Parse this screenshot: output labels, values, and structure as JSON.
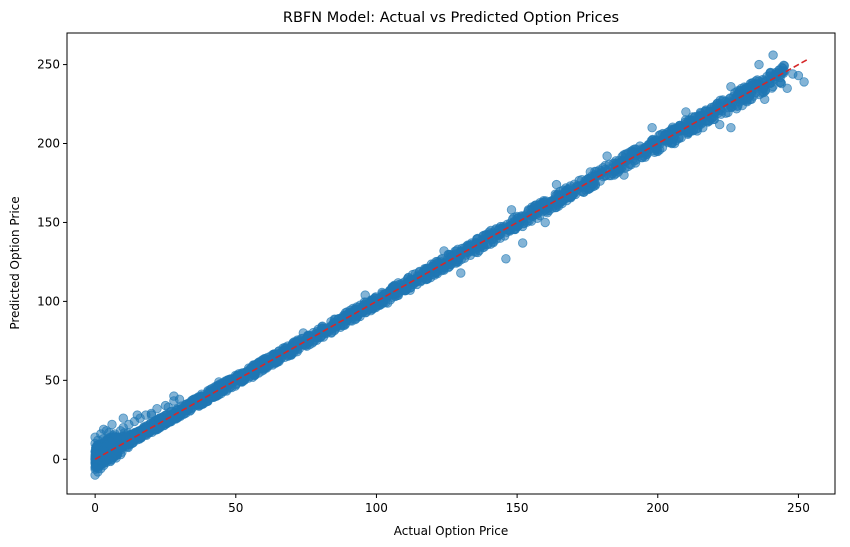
{
  "chart_data": {
    "type": "scatter",
    "title": "RBFN Model: Actual vs Predicted Option Prices",
    "xlabel": "Actual Option Price",
    "ylabel": "Predicted Option Price",
    "xlim": [
      -10,
      263
    ],
    "ylim": [
      -22,
      270
    ],
    "x_ticks": [
      0,
      50,
      100,
      150,
      200,
      250
    ],
    "y_ticks": [
      0,
      50,
      100,
      150,
      200,
      250
    ],
    "grid": false,
    "colors": {
      "points": "#1f77b4",
      "reference_line": "#d62728"
    },
    "reference_line": {
      "style": "dashed",
      "x": [
        0,
        253
      ],
      "y": [
        0,
        253
      ]
    },
    "series": [
      {
        "description_points": [
          [
            0,
            -10
          ],
          [
            0,
            -5
          ],
          [
            0,
            0
          ],
          [
            0,
            5
          ],
          [
            0,
            10
          ],
          [
            0,
            14
          ],
          [
            1,
            -8
          ],
          [
            1,
            3
          ],
          [
            1,
            12
          ],
          [
            2,
            -6
          ],
          [
            2,
            8
          ],
          [
            2,
            16
          ],
          [
            3,
            -4
          ],
          [
            3,
            6
          ],
          [
            3,
            13
          ],
          [
            4,
            -2
          ],
          [
            4,
            9
          ],
          [
            4,
            18
          ],
          [
            5,
            0
          ],
          [
            5,
            10
          ],
          [
            5,
            17
          ],
          [
            6,
            2
          ],
          [
            6,
            12
          ],
          [
            7,
            4
          ],
          [
            7,
            16
          ],
          [
            8,
            5
          ],
          [
            8,
            14
          ],
          [
            9,
            7
          ],
          [
            9,
            18
          ],
          [
            10,
            8
          ],
          [
            10,
            20
          ],
          [
            12,
            10
          ],
          [
            12,
            22
          ],
          [
            14,
            12
          ],
          [
            14,
            24
          ],
          [
            16,
            14
          ],
          [
            16,
            26
          ],
          [
            18,
            16
          ],
          [
            18,
            28
          ],
          [
            20,
            18
          ],
          [
            20,
            29
          ],
          [
            22,
            21
          ],
          [
            22,
            32
          ],
          [
            25,
            23
          ],
          [
            25,
            34
          ],
          [
            28,
            27
          ],
          [
            28,
            37
          ],
          [
            30,
            29
          ],
          [
            30,
            38
          ],
          [
            32,
            31
          ],
          [
            34,
            35
          ],
          [
            35,
            38
          ],
          [
            36,
            36
          ],
          [
            38,
            40
          ],
          [
            40,
            41
          ],
          [
            42,
            44
          ],
          [
            45,
            46
          ],
          [
            48,
            49
          ],
          [
            50,
            52
          ],
          [
            52,
            53
          ],
          [
            55,
            56
          ],
          [
            58,
            59
          ],
          [
            60,
            61
          ],
          [
            62,
            63
          ],
          [
            65,
            66
          ],
          [
            68,
            69
          ],
          [
            70,
            71
          ],
          [
            72,
            73
          ],
          [
            75,
            76
          ],
          [
            78,
            79
          ],
          [
            80,
            81
          ],
          [
            82,
            83
          ],
          [
            85,
            86
          ],
          [
            88,
            89
          ],
          [
            90,
            91
          ],
          [
            92,
            93
          ],
          [
            95,
            96
          ],
          [
            98,
            99
          ],
          [
            100,
            101
          ],
          [
            102,
            103
          ],
          [
            105,
            106
          ],
          [
            108,
            109
          ],
          [
            110,
            111
          ],
          [
            112,
            113
          ],
          [
            115,
            116
          ],
          [
            118,
            119
          ],
          [
            120,
            121
          ],
          [
            122,
            123
          ],
          [
            125,
            126
          ],
          [
            128,
            129
          ],
          [
            130,
            131
          ],
          [
            132,
            133
          ],
          [
            135,
            136
          ],
          [
            138,
            139
          ],
          [
            140,
            141
          ],
          [
            142,
            143
          ],
          [
            145,
            146
          ],
          [
            148,
            148
          ],
          [
            150,
            151
          ],
          [
            152,
            153
          ],
          [
            155,
            156
          ],
          [
            158,
            159
          ],
          [
            160,
            161
          ],
          [
            162,
            163
          ],
          [
            165,
            166
          ],
          [
            168,
            169
          ],
          [
            170,
            171
          ],
          [
            172,
            173
          ],
          [
            175,
            176
          ],
          [
            178,
            179
          ],
          [
            180,
            181
          ],
          [
            182,
            183
          ],
          [
            185,
            186
          ],
          [
            188,
            189
          ],
          [
            190,
            191
          ],
          [
            192,
            193
          ],
          [
            195,
            196
          ],
          [
            198,
            199
          ],
          [
            200,
            201
          ],
          [
            202,
            203
          ],
          [
            205,
            206
          ],
          [
            208,
            209
          ],
          [
            210,
            211
          ],
          [
            212,
            213
          ],
          [
            215,
            216
          ],
          [
            218,
            219
          ],
          [
            220,
            221
          ],
          [
            222,
            223
          ],
          [
            225,
            226
          ],
          [
            228,
            229
          ],
          [
            230,
            231
          ],
          [
            232,
            233
          ],
          [
            235,
            236
          ],
          [
            238,
            239
          ],
          [
            240,
            241
          ],
          [
            242,
            243
          ],
          [
            245,
            246
          ],
          [
            130,
            118
          ],
          [
            146,
            127
          ],
          [
            152,
            137
          ],
          [
            150,
            148
          ],
          [
            154,
            158
          ],
          [
            160,
            150
          ],
          [
            170,
            168
          ],
          [
            176,
            182
          ],
          [
            188,
            180
          ],
          [
            196,
            197
          ],
          [
            200,
            195
          ],
          [
            205,
            200
          ],
          [
            214,
            208
          ],
          [
            222,
            212
          ],
          [
            226,
            210
          ],
          [
            230,
            224
          ],
          [
            234,
            230
          ],
          [
            238,
            228
          ],
          [
            240,
            245
          ],
          [
            241,
            256
          ],
          [
            244,
            238
          ],
          [
            246,
            235
          ],
          [
            248,
            244
          ],
          [
            252,
            239
          ],
          [
            250,
            243
          ],
          [
            236,
            250
          ],
          [
            226,
            236
          ],
          [
            210,
            220
          ],
          [
            198,
            210
          ],
          [
            182,
            192
          ],
          [
            164,
            174
          ],
          [
            148,
            158
          ],
          [
            124,
            132
          ],
          [
            96,
            104
          ],
          [
            74,
            80
          ],
          [
            44,
            49
          ],
          [
            28,
            40
          ],
          [
            15,
            28
          ],
          [
            10,
            26
          ],
          [
            6,
            22
          ],
          [
            3,
            19
          ],
          [
            20,
            28
          ],
          [
            26,
            33
          ],
          [
            34,
            32
          ],
          [
            38,
            35
          ],
          [
            56,
            52
          ],
          [
            64,
            61
          ],
          [
            84,
            80
          ],
          [
            104,
            99
          ],
          [
            112,
            107
          ],
          [
            136,
            131
          ],
          [
            144,
            140
          ],
          [
            166,
            162
          ],
          [
            186,
            182
          ],
          [
            206,
            200
          ],
          [
            216,
            210
          ],
          [
            228,
            222
          ]
        ]
      }
    ]
  }
}
